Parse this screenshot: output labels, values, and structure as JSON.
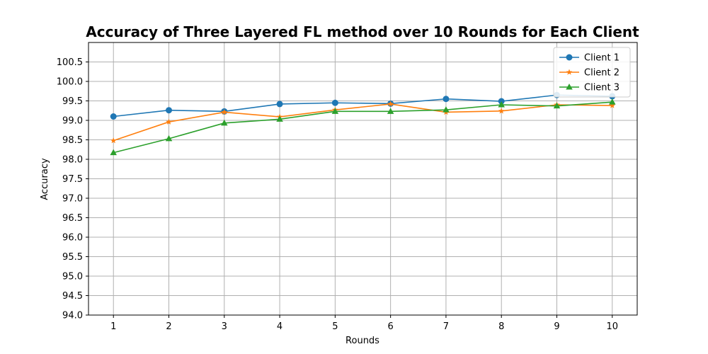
{
  "chart_data": {
    "type": "line",
    "title": "Accuracy of Three Layered FL method over 10 Rounds for Each Client",
    "xlabel": "Rounds",
    "ylabel": "Accuracy",
    "x": [
      1,
      2,
      3,
      4,
      5,
      6,
      7,
      8,
      9,
      10
    ],
    "xlim": [
      0.55,
      10.45
    ],
    "ylim": [
      94.0,
      101.0
    ],
    "yticks": [
      94.0,
      94.5,
      95.0,
      95.5,
      96.0,
      96.5,
      97.0,
      97.5,
      98.0,
      98.5,
      99.0,
      99.5,
      100.0,
      100.5
    ],
    "grid": true,
    "legend_position": "top-right",
    "series": [
      {
        "name": "Client 1",
        "color": "#1f77b4",
        "marker": "circle",
        "values": [
          99.1,
          99.26,
          99.23,
          99.42,
          99.45,
          99.43,
          99.55,
          99.49,
          99.65,
          99.62
        ]
      },
      {
        "name": "Client 2",
        "color": "#ff7f0e",
        "marker": "star",
        "values": [
          98.48,
          98.96,
          99.21,
          99.09,
          99.27,
          99.42,
          99.21,
          99.24,
          99.4,
          99.38
        ]
      },
      {
        "name": "Client 3",
        "color": "#2ca02c",
        "marker": "triangle",
        "values": [
          98.17,
          98.53,
          98.93,
          99.03,
          99.23,
          99.23,
          99.27,
          99.4,
          99.37,
          99.47
        ]
      }
    ]
  }
}
